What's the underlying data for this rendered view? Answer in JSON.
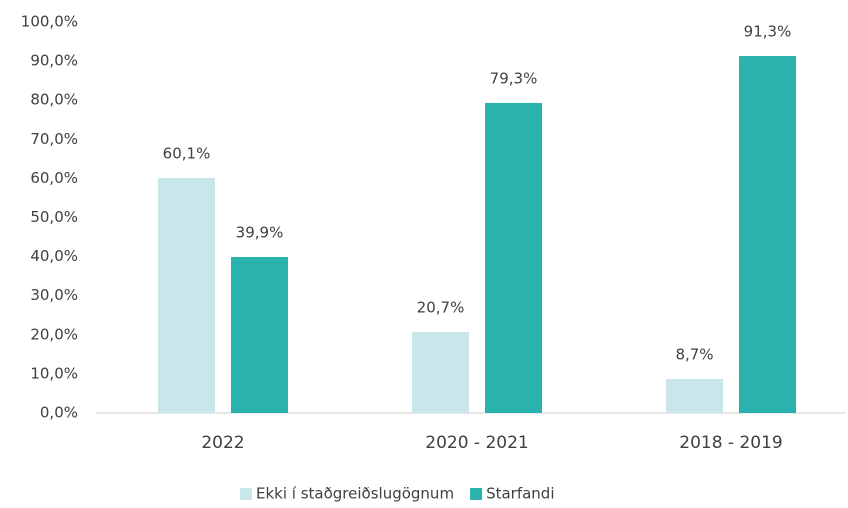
{
  "chart_data": {
    "type": "bar",
    "categories": [
      "2022",
      "2020 - 2021",
      "2018 - 2019"
    ],
    "series": [
      {
        "name": "Ekki í staðgreiðslugögnum",
        "color": "#c9e6ea",
        "values": [
          60.1,
          20.7,
          8.7
        ],
        "value_labels": [
          "60,1%",
          "20,7%",
          "8,7%"
        ]
      },
      {
        "name": "Starfandi",
        "color": "#2ab3ae",
        "values": [
          39.9,
          79.3,
          91.3
        ],
        "value_labels": [
          "39,9%",
          "79,3%",
          "91,3%"
        ]
      }
    ],
    "ylim": [
      0,
      100
    ],
    "yticks": [
      {
        "value": 0,
        "label": "0,0%"
      },
      {
        "value": 10,
        "label": "10,0%"
      },
      {
        "value": 20,
        "label": "20,0%"
      },
      {
        "value": 30,
        "label": "30,0%"
      },
      {
        "value": 40,
        "label": "40,0%"
      },
      {
        "value": 50,
        "label": "50,0%"
      },
      {
        "value": 60,
        "label": "60,0%"
      },
      {
        "value": 70,
        "label": "70,0%"
      },
      {
        "value": 80,
        "label": "80,0%"
      },
      {
        "value": 90,
        "label": "90,0%"
      },
      {
        "value": 100,
        "label": "100,0%"
      }
    ],
    "grid": false,
    "legend": "bottom"
  }
}
